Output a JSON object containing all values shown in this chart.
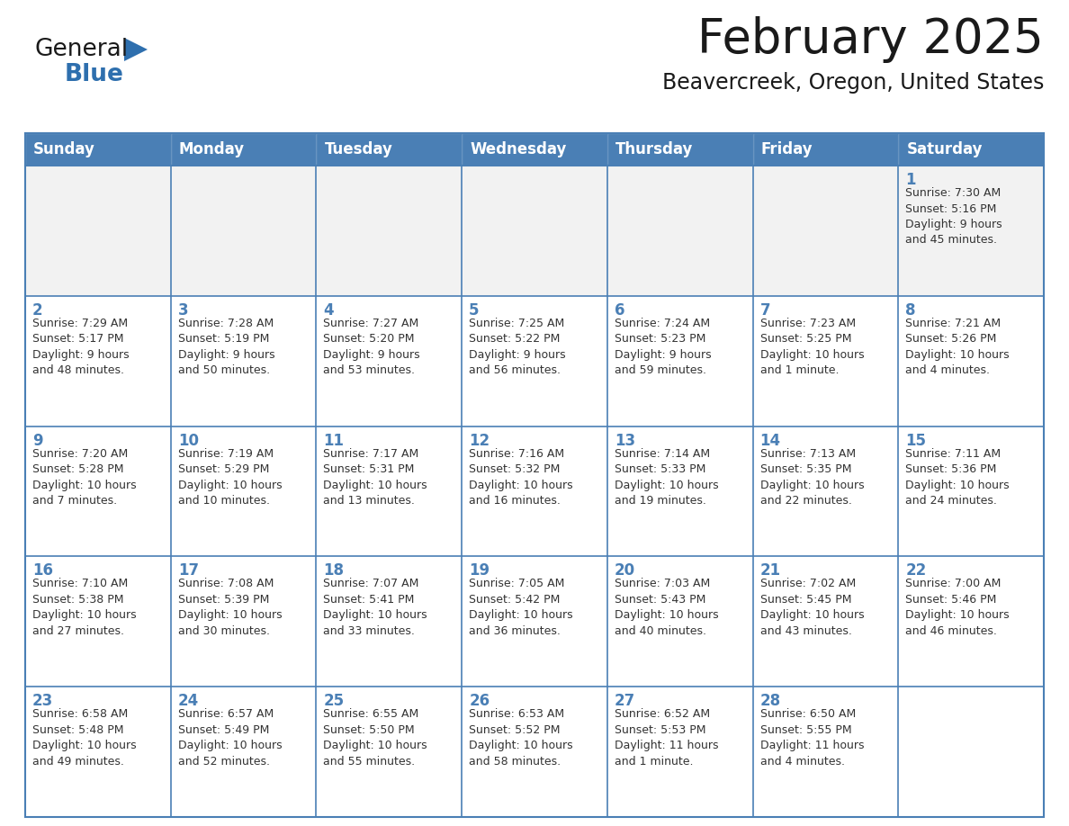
{
  "title": "February 2025",
  "subtitle": "Beavercreek, Oregon, United States",
  "days_of_week": [
    "Sunday",
    "Monday",
    "Tuesday",
    "Wednesday",
    "Thursday",
    "Friday",
    "Saturday"
  ],
  "header_bg": "#4a7fb5",
  "header_text": "#ffffff",
  "cell_bg": "#ffffff",
  "cell_bg_light": "#f2f2f2",
  "day_num_color": "#4a7fb5",
  "text_color": "#333333",
  "grid_color": "#4a7fb5",
  "border_color": "#4a7fb5",
  "logo_general_color": "#1a1a1a",
  "logo_blue_color": "#2e6fae",
  "weeks": [
    [
      {
        "day": null,
        "info": null
      },
      {
        "day": null,
        "info": null
      },
      {
        "day": null,
        "info": null
      },
      {
        "day": null,
        "info": null
      },
      {
        "day": null,
        "info": null
      },
      {
        "day": null,
        "info": null
      },
      {
        "day": 1,
        "info": "Sunrise: 7:30 AM\nSunset: 5:16 PM\nDaylight: 9 hours\nand 45 minutes."
      }
    ],
    [
      {
        "day": 2,
        "info": "Sunrise: 7:29 AM\nSunset: 5:17 PM\nDaylight: 9 hours\nand 48 minutes."
      },
      {
        "day": 3,
        "info": "Sunrise: 7:28 AM\nSunset: 5:19 PM\nDaylight: 9 hours\nand 50 minutes."
      },
      {
        "day": 4,
        "info": "Sunrise: 7:27 AM\nSunset: 5:20 PM\nDaylight: 9 hours\nand 53 minutes."
      },
      {
        "day": 5,
        "info": "Sunrise: 7:25 AM\nSunset: 5:22 PM\nDaylight: 9 hours\nand 56 minutes."
      },
      {
        "day": 6,
        "info": "Sunrise: 7:24 AM\nSunset: 5:23 PM\nDaylight: 9 hours\nand 59 minutes."
      },
      {
        "day": 7,
        "info": "Sunrise: 7:23 AM\nSunset: 5:25 PM\nDaylight: 10 hours\nand 1 minute."
      },
      {
        "day": 8,
        "info": "Sunrise: 7:21 AM\nSunset: 5:26 PM\nDaylight: 10 hours\nand 4 minutes."
      }
    ],
    [
      {
        "day": 9,
        "info": "Sunrise: 7:20 AM\nSunset: 5:28 PM\nDaylight: 10 hours\nand 7 minutes."
      },
      {
        "day": 10,
        "info": "Sunrise: 7:19 AM\nSunset: 5:29 PM\nDaylight: 10 hours\nand 10 minutes."
      },
      {
        "day": 11,
        "info": "Sunrise: 7:17 AM\nSunset: 5:31 PM\nDaylight: 10 hours\nand 13 minutes."
      },
      {
        "day": 12,
        "info": "Sunrise: 7:16 AM\nSunset: 5:32 PM\nDaylight: 10 hours\nand 16 minutes."
      },
      {
        "day": 13,
        "info": "Sunrise: 7:14 AM\nSunset: 5:33 PM\nDaylight: 10 hours\nand 19 minutes."
      },
      {
        "day": 14,
        "info": "Sunrise: 7:13 AM\nSunset: 5:35 PM\nDaylight: 10 hours\nand 22 minutes."
      },
      {
        "day": 15,
        "info": "Sunrise: 7:11 AM\nSunset: 5:36 PM\nDaylight: 10 hours\nand 24 minutes."
      }
    ],
    [
      {
        "day": 16,
        "info": "Sunrise: 7:10 AM\nSunset: 5:38 PM\nDaylight: 10 hours\nand 27 minutes."
      },
      {
        "day": 17,
        "info": "Sunrise: 7:08 AM\nSunset: 5:39 PM\nDaylight: 10 hours\nand 30 minutes."
      },
      {
        "day": 18,
        "info": "Sunrise: 7:07 AM\nSunset: 5:41 PM\nDaylight: 10 hours\nand 33 minutes."
      },
      {
        "day": 19,
        "info": "Sunrise: 7:05 AM\nSunset: 5:42 PM\nDaylight: 10 hours\nand 36 minutes."
      },
      {
        "day": 20,
        "info": "Sunrise: 7:03 AM\nSunset: 5:43 PM\nDaylight: 10 hours\nand 40 minutes."
      },
      {
        "day": 21,
        "info": "Sunrise: 7:02 AM\nSunset: 5:45 PM\nDaylight: 10 hours\nand 43 minutes."
      },
      {
        "day": 22,
        "info": "Sunrise: 7:00 AM\nSunset: 5:46 PM\nDaylight: 10 hours\nand 46 minutes."
      }
    ],
    [
      {
        "day": 23,
        "info": "Sunrise: 6:58 AM\nSunset: 5:48 PM\nDaylight: 10 hours\nand 49 minutes."
      },
      {
        "day": 24,
        "info": "Sunrise: 6:57 AM\nSunset: 5:49 PM\nDaylight: 10 hours\nand 52 minutes."
      },
      {
        "day": 25,
        "info": "Sunrise: 6:55 AM\nSunset: 5:50 PM\nDaylight: 10 hours\nand 55 minutes."
      },
      {
        "day": 26,
        "info": "Sunrise: 6:53 AM\nSunset: 5:52 PM\nDaylight: 10 hours\nand 58 minutes."
      },
      {
        "day": 27,
        "info": "Sunrise: 6:52 AM\nSunset: 5:53 PM\nDaylight: 11 hours\nand 1 minute."
      },
      {
        "day": 28,
        "info": "Sunrise: 6:50 AM\nSunset: 5:55 PM\nDaylight: 11 hours\nand 4 minutes."
      },
      {
        "day": null,
        "info": null
      }
    ]
  ]
}
